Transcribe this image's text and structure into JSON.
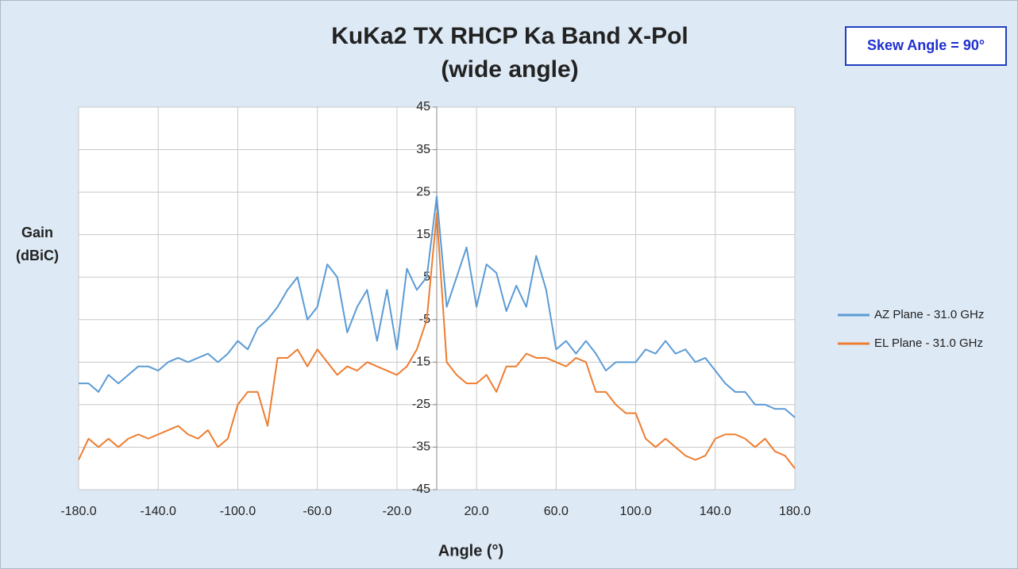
{
  "chart_data": {
    "type": "line",
    "title": [
      "KuKa2 TX RHCP Ka Band X-Pol",
      "(wide angle)"
    ],
    "annotation": "Skew Angle = 90°",
    "xlabel": "Angle (°)",
    "ylabel": [
      "Gain",
      "(dBiC)"
    ],
    "x": [
      -180,
      -175,
      -170,
      -165,
      -160,
      -155,
      -150,
      -145,
      -140,
      -135,
      -130,
      -125,
      -120,
      -115,
      -110,
      -105,
      -100,
      -95,
      -90,
      -85,
      -80,
      -75,
      -70,
      -65,
      -60,
      -55,
      -50,
      -45,
      -40,
      -35,
      -30,
      -25,
      -20,
      -15,
      -10,
      -5,
      0,
      5,
      10,
      15,
      20,
      25,
      30,
      35,
      40,
      45,
      50,
      55,
      60,
      65,
      70,
      75,
      80,
      85,
      90,
      95,
      100,
      105,
      110,
      115,
      120,
      125,
      130,
      135,
      140,
      145,
      150,
      155,
      160,
      165,
      170,
      175,
      180
    ],
    "series": [
      {
        "name": "AZ Plane - 31.0 GHz",
        "color": "#5b9bd5",
        "values": [
          -20,
          -20,
          -22,
          -18,
          -20,
          -18,
          -16,
          -16,
          -17,
          -15,
          -14,
          -15,
          -14,
          -13,
          -15,
          -13,
          -10,
          -12,
          -7,
          -5,
          -2,
          2,
          5,
          -5,
          -2,
          8,
          5,
          -8,
          -2,
          2,
          -10,
          2,
          -12,
          7,
          2,
          5,
          24,
          -2,
          5,
          12,
          -2,
          8,
          6,
          -3,
          3,
          -2,
          10,
          2,
          -12,
          -10,
          -13,
          -10,
          -13,
          -17,
          -15,
          -15,
          -15,
          -12,
          -13,
          -10,
          -13,
          -12,
          -15,
          -14,
          -17,
          -20,
          -22,
          -22,
          -25,
          -25,
          -26,
          -26,
          -28
        ]
      },
      {
        "name": "EL Plane - 31.0 GHz",
        "color": "#ed7d31",
        "values": [
          -38,
          -33,
          -35,
          -33,
          -35,
          -33,
          -32,
          -33,
          -32,
          -31,
          -30,
          -32,
          -33,
          -31,
          -35,
          -33,
          -25,
          -22,
          -22,
          -30,
          -14,
          -14,
          -12,
          -16,
          -12,
          -15,
          -18,
          -16,
          -17,
          -15,
          -16,
          -17,
          -18,
          -16,
          -12,
          -5,
          20,
          -15,
          -18,
          -20,
          -20,
          -18,
          -22,
          -16,
          -16,
          -13,
          -14,
          -14,
          -15,
          -16,
          -14,
          -15,
          -22,
          -22,
          -25,
          -27,
          -27,
          -33,
          -35,
          -33,
          -35,
          -37,
          -38,
          -37,
          -33,
          -32,
          -32,
          -33,
          -35,
          -33,
          -36,
          -37,
          -40
        ]
      }
    ],
    "xlim": [
      -180,
      180
    ],
    "xticks": [
      {
        "value": -180,
        "label": "-180.0"
      },
      {
        "value": -140,
        "label": "-140.0"
      },
      {
        "value": -100,
        "label": "-100.0"
      },
      {
        "value": -60,
        "label": "-60.0"
      },
      {
        "value": -20,
        "label": "-20.0"
      },
      {
        "value": 20,
        "label": "20.0"
      },
      {
        "value": 60,
        "label": "60.0"
      },
      {
        "value": 100,
        "label": "100.0"
      },
      {
        "value": 140,
        "label": "140.0"
      },
      {
        "value": 180,
        "label": "180.0"
      }
    ],
    "ylim": [
      -45,
      45
    ],
    "yticks": [
      45,
      35,
      25,
      15,
      5,
      -5,
      -15,
      -25,
      -35,
      -45
    ],
    "grid": true,
    "legend": "right"
  }
}
